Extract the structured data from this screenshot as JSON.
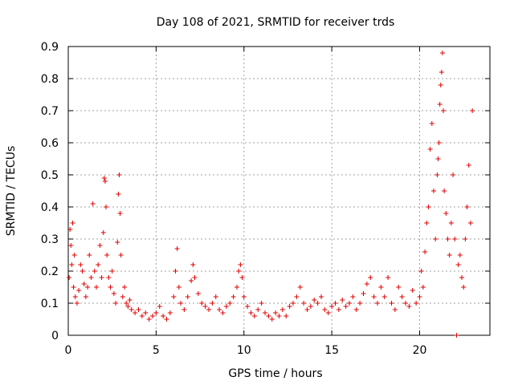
{
  "chart_data": {
    "type": "scatter",
    "title": "Day 108 of 2021, SRMTID for receiver trds",
    "xlabel": "GPS time / hours",
    "ylabel": "SRMTID / TECUs",
    "xlim": [
      0,
      24
    ],
    "ylim": [
      0,
      0.9
    ],
    "xticks": [
      0,
      5,
      10,
      15,
      20
    ],
    "xtick_labels": [
      "0",
      "5",
      "10",
      "15",
      "20"
    ],
    "yticks": [
      0,
      0.1,
      0.2,
      0.3,
      0.4,
      0.5,
      0.6,
      0.7,
      0.8,
      0.9
    ],
    "ytick_labels": [
      "0",
      "0.1",
      "0.2",
      "0.3",
      "0.4",
      "0.5",
      "0.6",
      "0.7",
      "0.8",
      "0.9"
    ],
    "grid": true,
    "marker": "plus",
    "color": "#e00000",
    "series": [
      {
        "name": "SRMTID",
        "x": [
          0.05,
          0.1,
          0.15,
          0.2,
          0.25,
          0.3,
          0.35,
          0.4,
          0.5,
          0.6,
          0.7,
          0.8,
          0.9,
          1.0,
          1.1,
          1.2,
          1.3,
          1.4,
          1.5,
          1.6,
          1.7,
          1.8,
          1.9,
          2.0,
          2.05,
          2.1,
          2.15,
          2.2,
          2.3,
          2.4,
          2.5,
          2.6,
          2.7,
          2.8,
          2.85,
          2.9,
          2.95,
          3.0,
          3.1,
          3.2,
          3.3,
          3.4,
          3.5,
          3.6,
          3.8,
          4.0,
          4.2,
          4.4,
          4.6,
          4.8,
          5.0,
          5.2,
          5.4,
          5.6,
          5.8,
          6.0,
          6.1,
          6.2,
          6.3,
          6.4,
          6.6,
          6.8,
          7.0,
          7.1,
          7.2,
          7.4,
          7.6,
          7.8,
          8.0,
          8.2,
          8.4,
          8.6,
          8.8,
          9.0,
          9.2,
          9.4,
          9.6,
          9.7,
          9.8,
          9.9,
          10.0,
          10.2,
          10.4,
          10.6,
          10.8,
          11.0,
          11.2,
          11.4,
          11.6,
          11.8,
          12.0,
          12.2,
          12.4,
          12.6,
          12.8,
          13.0,
          13.2,
          13.4,
          13.6,
          13.8,
          14.0,
          14.2,
          14.4,
          14.6,
          14.8,
          15.0,
          15.2,
          15.4,
          15.6,
          15.8,
          16.0,
          16.2,
          16.4,
          16.6,
          16.8,
          17.0,
          17.2,
          17.4,
          17.6,
          17.8,
          18.0,
          18.2,
          18.4,
          18.6,
          18.8,
          19.0,
          19.2,
          19.4,
          19.6,
          19.8,
          20.0,
          20.1,
          20.2,
          20.3,
          20.4,
          20.5,
          20.6,
          20.7,
          20.8,
          20.9,
          21.0,
          21.05,
          21.1,
          21.15,
          21.2,
          21.25,
          21.3,
          21.35,
          21.4,
          21.5,
          21.6,
          21.7,
          21.8,
          21.9,
          22.0,
          22.1,
          22.2,
          22.3,
          22.4,
          22.5,
          22.6,
          22.7,
          22.8,
          22.9,
          23.0
        ],
        "y": [
          0.18,
          0.33,
          0.28,
          0.22,
          0.35,
          0.15,
          0.25,
          0.12,
          0.1,
          0.14,
          0.22,
          0.2,
          0.16,
          0.12,
          0.15,
          0.25,
          0.18,
          0.41,
          0.2,
          0.15,
          0.22,
          0.28,
          0.18,
          0.32,
          0.49,
          0.48,
          0.4,
          0.25,
          0.18,
          0.15,
          0.2,
          0.13,
          0.1,
          0.29,
          0.44,
          0.5,
          0.38,
          0.25,
          0.12,
          0.15,
          0.1,
          0.09,
          0.11,
          0.08,
          0.07,
          0.08,
          0.06,
          0.07,
          0.05,
          0.06,
          0.07,
          0.09,
          0.06,
          0.05,
          0.07,
          0.12,
          0.2,
          0.27,
          0.15,
          0.1,
          0.08,
          0.12,
          0.17,
          0.22,
          0.18,
          0.13,
          0.1,
          0.09,
          0.08,
          0.1,
          0.12,
          0.08,
          0.07,
          0.09,
          0.1,
          0.12,
          0.15,
          0.2,
          0.22,
          0.18,
          0.12,
          0.09,
          0.07,
          0.06,
          0.08,
          0.1,
          0.07,
          0.06,
          0.05,
          0.07,
          0.06,
          0.08,
          0.06,
          0.09,
          0.1,
          0.12,
          0.15,
          0.1,
          0.08,
          0.09,
          0.11,
          0.1,
          0.12,
          0.08,
          0.07,
          0.09,
          0.1,
          0.08,
          0.11,
          0.09,
          0.1,
          0.12,
          0.08,
          0.1,
          0.13,
          0.16,
          0.18,
          0.12,
          0.1,
          0.15,
          0.12,
          0.18,
          0.1,
          0.08,
          0.15,
          0.12,
          0.1,
          0.09,
          0.14,
          0.1,
          0.12,
          0.2,
          0.15,
          0.26,
          0.35,
          0.4,
          0.58,
          0.66,
          0.45,
          0.3,
          0.5,
          0.55,
          0.6,
          0.72,
          0.78,
          0.82,
          0.88,
          0.7,
          0.45,
          0.38,
          0.3,
          0.25,
          0.35,
          0.5,
          0.3,
          0.0,
          0.22,
          0.25,
          0.18,
          0.15,
          0.3,
          0.4,
          0.53,
          0.35,
          0.7
        ]
      }
    ]
  }
}
